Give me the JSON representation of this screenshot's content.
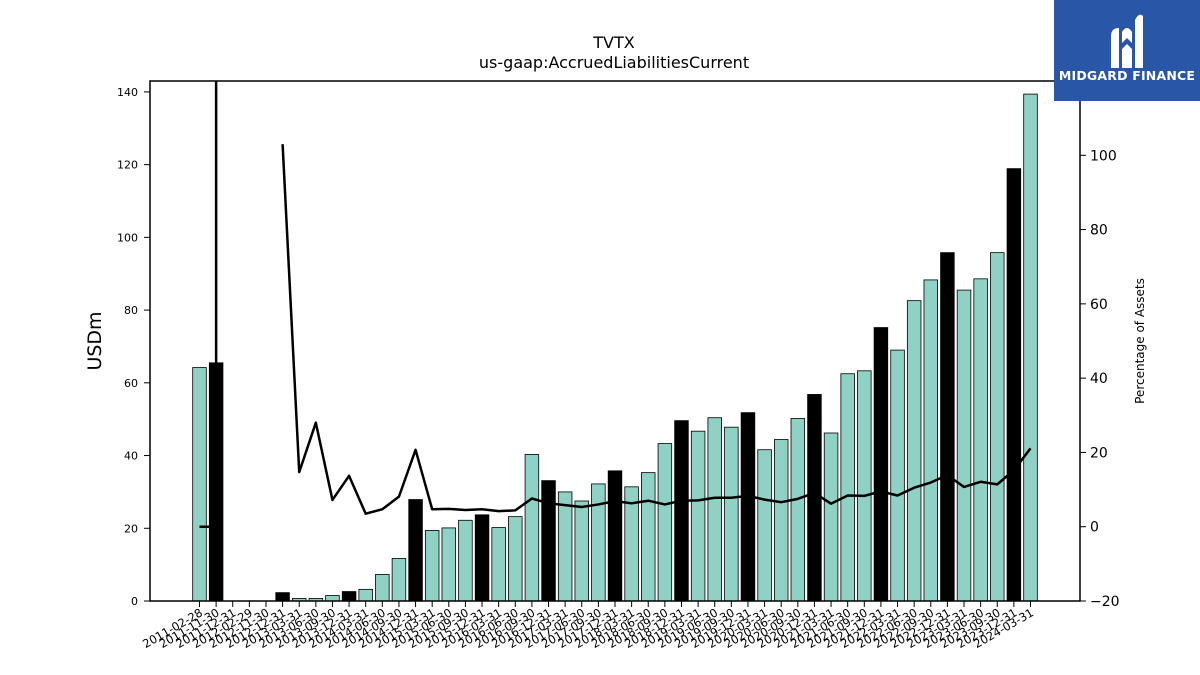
{
  "brand": {
    "name": "MIDGARD FINANCE",
    "color": "#2a56a8"
  },
  "colors": {
    "bar_regular": "#8fd1c5",
    "bar_year_end": "#000000",
    "line": "#000000"
  },
  "chart_data": {
    "type": "bar",
    "title": "TVTX",
    "subtitle": "us-gaap:AccruedLiabilitiesCurrent",
    "ylabel": "USDm",
    "y2label": "Percentage of Assets",
    "ylim": [
      0,
      143
    ],
    "y2lim": [
      -20,
      120
    ],
    "yticks": [
      0,
      20,
      40,
      60,
      80,
      100,
      120,
      140
    ],
    "y2ticks": [
      -20,
      0,
      20,
      40,
      60,
      80,
      100
    ],
    "categories": [
      "2011-02-28",
      "2011-11-30",
      "2011-12-31",
      "2012-02-29",
      "2012-11-30",
      "2012-12-31",
      "2013-03-31",
      "2013-06-30",
      "2013-09-30",
      "2013-12-31",
      "2014-03-31",
      "2014-06-30",
      "2014-09-30",
      "2014-12-31",
      "2015-03-31",
      "2015-06-30",
      "2015-09-30",
      "2015-12-31",
      "2016-03-31",
      "2016-06-30",
      "2016-09-30",
      "2016-12-31",
      "2017-03-31",
      "2017-06-30",
      "2017-09-30",
      "2017-12-31",
      "2018-03-31",
      "2018-06-30",
      "2018-09-30",
      "2018-12-31",
      "2019-03-31",
      "2019-06-30",
      "2019-09-30",
      "2019-12-31",
      "2020-03-31",
      "2020-06-30",
      "2020-09-30",
      "2020-12-31",
      "2021-03-31",
      "2021-06-30",
      "2021-09-30",
      "2021-12-31",
      "2022-03-31",
      "2022-06-30",
      "2022-09-30",
      "2022-12-31",
      "2023-03-31",
      "2023-06-30",
      "2023-09-30",
      "2023-12-31",
      "2024-03-31"
    ],
    "series": [
      {
        "kind": "bar",
        "values": [
          64.2,
          65.5,
          null,
          null,
          null,
          2.3,
          0.7,
          0.7,
          1.5,
          2.6,
          3.2,
          7.3,
          11.7,
          27.9,
          19.4,
          20.1,
          22.2,
          23.7,
          20.2,
          23.2,
          40.3,
          33.1,
          30.0,
          27.5,
          32.2,
          35.8,
          31.4,
          35.3,
          43.3,
          49.6,
          46.7,
          50.4,
          47.8,
          51.8,
          41.6,
          44.4,
          50.2,
          56.8,
          46.2,
          62.5,
          63.3,
          75.2,
          69.0,
          82.6,
          88.3,
          95.8,
          85.5,
          88.6,
          95.8,
          118.9,
          139.4
        ],
        "highlight": [
          false,
          true,
          false,
          false,
          false,
          true,
          false,
          false,
          false,
          true,
          false,
          false,
          false,
          true,
          false,
          false,
          false,
          true,
          false,
          false,
          false,
          true,
          false,
          false,
          false,
          true,
          false,
          false,
          false,
          true,
          false,
          false,
          false,
          true,
          false,
          false,
          false,
          true,
          false,
          false,
          false,
          true,
          false,
          false,
          false,
          true,
          false,
          false,
          false,
          true,
          false
        ]
      },
      {
        "kind": "line",
        "axis": "right",
        "values": [
          0.0,
          0.0,
          null,
          null,
          null,
          103,
          14.7,
          28.0,
          7.2,
          13.7,
          3.5,
          4.7,
          8.1,
          20.7,
          4.7,
          4.8,
          4.5,
          4.7,
          4.2,
          4.4,
          7.6,
          6.3,
          5.8,
          5.3,
          6.0,
          6.9,
          6.3,
          7.0,
          6.0,
          7.0,
          7.1,
          7.8,
          7.8,
          8.3,
          7.3,
          6.6,
          7.5,
          9.1,
          6.2,
          8.4,
          8.3,
          9.5,
          8.4,
          10.5,
          11.9,
          13.9,
          10.7,
          12.1,
          11.4,
          15.2,
          21.1
        ],
        "extends_off_chart": [
          1,
          5
        ]
      }
    ]
  }
}
